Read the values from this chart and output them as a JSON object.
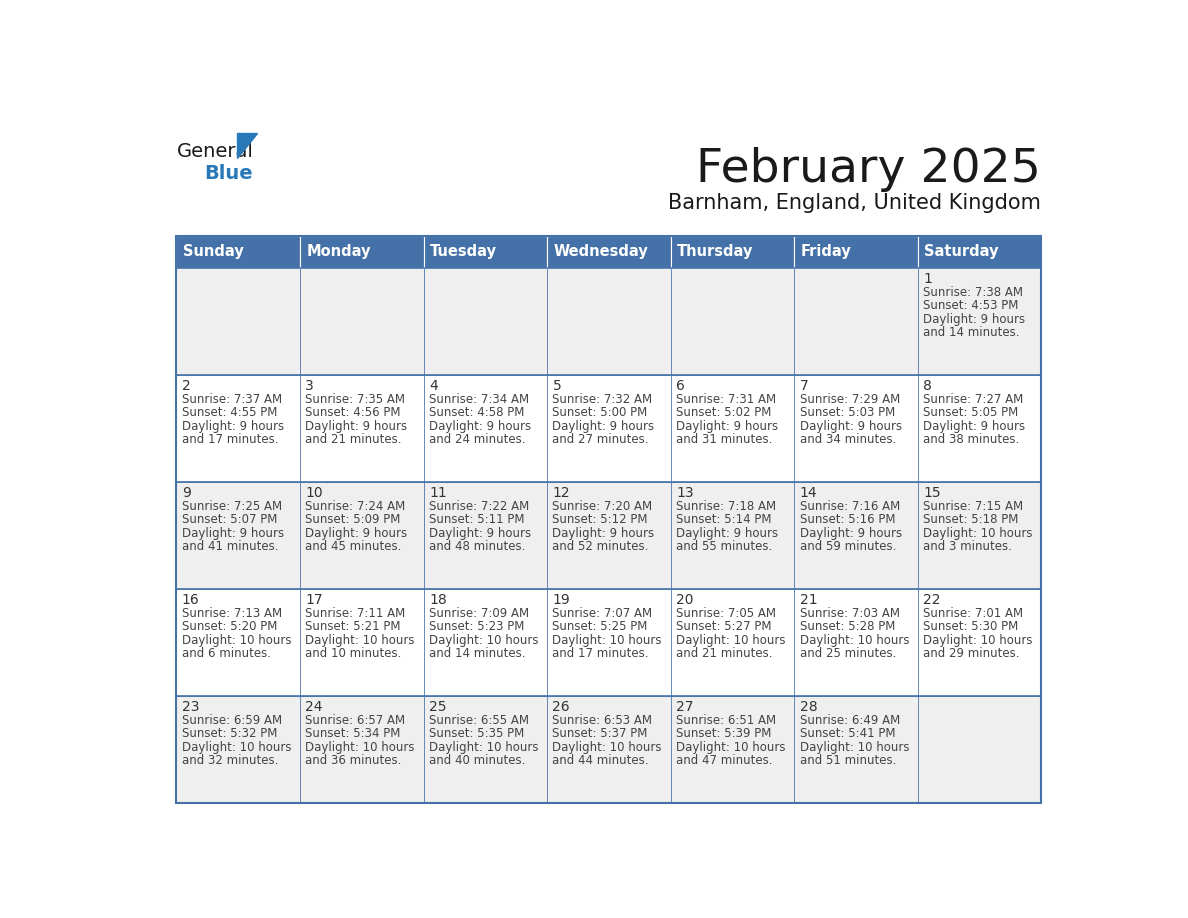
{
  "title": "February 2025",
  "subtitle": "Barnham, England, United Kingdom",
  "days_of_week": [
    "Sunday",
    "Monday",
    "Tuesday",
    "Wednesday",
    "Thursday",
    "Friday",
    "Saturday"
  ],
  "header_bg": "#4472a8",
  "header_text": "#ffffff",
  "cell_bg_light": "#efefef",
  "cell_bg_white": "#ffffff",
  "border_color": "#4472a8",
  "text_color": "#444444",
  "day_num_color": "#333333",
  "title_color": "#1a1a1a",
  "subtitle_color": "#1a1a1a",
  "logo_general_color": "#1a1a1a",
  "logo_blue_color": "#2979b8",
  "weeks": [
    [
      null,
      null,
      null,
      null,
      null,
      null,
      1
    ],
    [
      2,
      3,
      4,
      5,
      6,
      7,
      8
    ],
    [
      9,
      10,
      11,
      12,
      13,
      14,
      15
    ],
    [
      16,
      17,
      18,
      19,
      20,
      21,
      22
    ],
    [
      23,
      24,
      25,
      26,
      27,
      28,
      null
    ]
  ],
  "cell_data": {
    "1": {
      "sunrise": "7:38 AM",
      "sunset": "4:53 PM",
      "daylight_line1": "Daylight: 9 hours",
      "daylight_line2": "and 14 minutes."
    },
    "2": {
      "sunrise": "7:37 AM",
      "sunset": "4:55 PM",
      "daylight_line1": "Daylight: 9 hours",
      "daylight_line2": "and 17 minutes."
    },
    "3": {
      "sunrise": "7:35 AM",
      "sunset": "4:56 PM",
      "daylight_line1": "Daylight: 9 hours",
      "daylight_line2": "and 21 minutes."
    },
    "4": {
      "sunrise": "7:34 AM",
      "sunset": "4:58 PM",
      "daylight_line1": "Daylight: 9 hours",
      "daylight_line2": "and 24 minutes."
    },
    "5": {
      "sunrise": "7:32 AM",
      "sunset": "5:00 PM",
      "daylight_line1": "Daylight: 9 hours",
      "daylight_line2": "and 27 minutes."
    },
    "6": {
      "sunrise": "7:31 AM",
      "sunset": "5:02 PM",
      "daylight_line1": "Daylight: 9 hours",
      "daylight_line2": "and 31 minutes."
    },
    "7": {
      "sunrise": "7:29 AM",
      "sunset": "5:03 PM",
      "daylight_line1": "Daylight: 9 hours",
      "daylight_line2": "and 34 minutes."
    },
    "8": {
      "sunrise": "7:27 AM",
      "sunset": "5:05 PM",
      "daylight_line1": "Daylight: 9 hours",
      "daylight_line2": "and 38 minutes."
    },
    "9": {
      "sunrise": "7:25 AM",
      "sunset": "5:07 PM",
      "daylight_line1": "Daylight: 9 hours",
      "daylight_line2": "and 41 minutes."
    },
    "10": {
      "sunrise": "7:24 AM",
      "sunset": "5:09 PM",
      "daylight_line1": "Daylight: 9 hours",
      "daylight_line2": "and 45 minutes."
    },
    "11": {
      "sunrise": "7:22 AM",
      "sunset": "5:11 PM",
      "daylight_line1": "Daylight: 9 hours",
      "daylight_line2": "and 48 minutes."
    },
    "12": {
      "sunrise": "7:20 AM",
      "sunset": "5:12 PM",
      "daylight_line1": "Daylight: 9 hours",
      "daylight_line2": "and 52 minutes."
    },
    "13": {
      "sunrise": "7:18 AM",
      "sunset": "5:14 PM",
      "daylight_line1": "Daylight: 9 hours",
      "daylight_line2": "and 55 minutes."
    },
    "14": {
      "sunrise": "7:16 AM",
      "sunset": "5:16 PM",
      "daylight_line1": "Daylight: 9 hours",
      "daylight_line2": "and 59 minutes."
    },
    "15": {
      "sunrise": "7:15 AM",
      "sunset": "5:18 PM",
      "daylight_line1": "Daylight: 10 hours",
      "daylight_line2": "and 3 minutes."
    },
    "16": {
      "sunrise": "7:13 AM",
      "sunset": "5:20 PM",
      "daylight_line1": "Daylight: 10 hours",
      "daylight_line2": "and 6 minutes."
    },
    "17": {
      "sunrise": "7:11 AM",
      "sunset": "5:21 PM",
      "daylight_line1": "Daylight: 10 hours",
      "daylight_line2": "and 10 minutes."
    },
    "18": {
      "sunrise": "7:09 AM",
      "sunset": "5:23 PM",
      "daylight_line1": "Daylight: 10 hours",
      "daylight_line2": "and 14 minutes."
    },
    "19": {
      "sunrise": "7:07 AM",
      "sunset": "5:25 PM",
      "daylight_line1": "Daylight: 10 hours",
      "daylight_line2": "and 17 minutes."
    },
    "20": {
      "sunrise": "7:05 AM",
      "sunset": "5:27 PM",
      "daylight_line1": "Daylight: 10 hours",
      "daylight_line2": "and 21 minutes."
    },
    "21": {
      "sunrise": "7:03 AM",
      "sunset": "5:28 PM",
      "daylight_line1": "Daylight: 10 hours",
      "daylight_line2": "and 25 minutes."
    },
    "22": {
      "sunrise": "7:01 AM",
      "sunset": "5:30 PM",
      "daylight_line1": "Daylight: 10 hours",
      "daylight_line2": "and 29 minutes."
    },
    "23": {
      "sunrise": "6:59 AM",
      "sunset": "5:32 PM",
      "daylight_line1": "Daylight: 10 hours",
      "daylight_line2": "and 32 minutes."
    },
    "24": {
      "sunrise": "6:57 AM",
      "sunset": "5:34 PM",
      "daylight_line1": "Daylight: 10 hours",
      "daylight_line2": "and 36 minutes."
    },
    "25": {
      "sunrise": "6:55 AM",
      "sunset": "5:35 PM",
      "daylight_line1": "Daylight: 10 hours",
      "daylight_line2": "and 40 minutes."
    },
    "26": {
      "sunrise": "6:53 AM",
      "sunset": "5:37 PM",
      "daylight_line1": "Daylight: 10 hours",
      "daylight_line2": "and 44 minutes."
    },
    "27": {
      "sunrise": "6:51 AM",
      "sunset": "5:39 PM",
      "daylight_line1": "Daylight: 10 hours",
      "daylight_line2": "and 47 minutes."
    },
    "28": {
      "sunrise": "6:49 AM",
      "sunset": "5:41 PM",
      "daylight_line1": "Daylight: 10 hours",
      "daylight_line2": "and 51 minutes."
    }
  }
}
